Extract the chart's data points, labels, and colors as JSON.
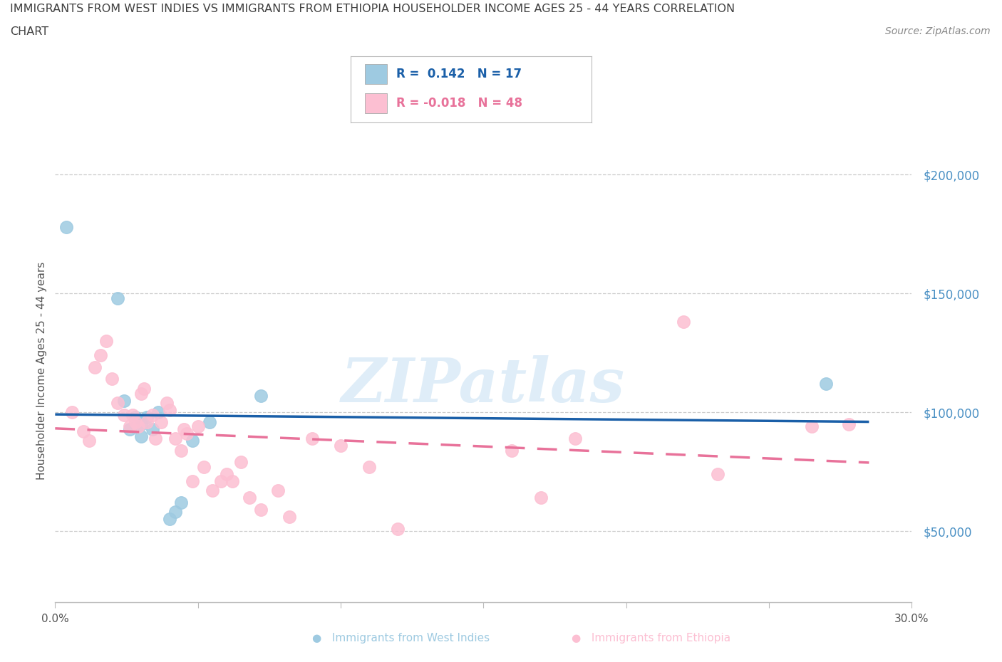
{
  "title_line1": "IMMIGRANTS FROM WEST INDIES VS IMMIGRANTS FROM ETHIOPIA HOUSEHOLDER INCOME AGES 25 - 44 YEARS CORRELATION",
  "title_line2": "CHART",
  "source": "Source: ZipAtlas.com",
  "ylabel": "Householder Income Ages 25 - 44 years",
  "xlim": [
    0.0,
    0.3
  ],
  "ylim": [
    20000,
    215000
  ],
  "yticks": [
    50000,
    100000,
    150000,
    200000
  ],
  "ytick_labels": [
    "$50,000",
    "$100,000",
    "$150,000",
    "$200,000"
  ],
  "xticks": [
    0.0,
    0.05,
    0.1,
    0.15,
    0.2,
    0.25,
    0.3
  ],
  "xtick_labels": [
    "0.0%",
    "",
    "",
    "",
    "",
    "",
    "30.0%"
  ],
  "west_indies_color": "#9ecae1",
  "ethiopia_color": "#fcbfd2",
  "west_indies_line_color": "#1a5fa8",
  "ethiopia_line_color": "#e8729a",
  "R_west_indies": 0.142,
  "N_west_indies": 17,
  "R_ethiopia": -0.018,
  "N_ethiopia": 48,
  "west_indies_x": [
    0.004,
    0.022,
    0.024,
    0.026,
    0.028,
    0.03,
    0.03,
    0.032,
    0.034,
    0.036,
    0.04,
    0.042,
    0.044,
    0.048,
    0.054,
    0.072,
    0.27
  ],
  "west_indies_y": [
    178000,
    148000,
    105000,
    93000,
    98000,
    95000,
    90000,
    98000,
    93000,
    100000,
    55000,
    58000,
    62000,
    88000,
    96000,
    107000,
    112000
  ],
  "ethiopia_x": [
    0.006,
    0.01,
    0.012,
    0.014,
    0.016,
    0.018,
    0.02,
    0.022,
    0.024,
    0.026,
    0.027,
    0.028,
    0.029,
    0.03,
    0.031,
    0.032,
    0.034,
    0.035,
    0.037,
    0.039,
    0.04,
    0.042,
    0.044,
    0.045,
    0.046,
    0.048,
    0.05,
    0.052,
    0.055,
    0.058,
    0.06,
    0.062,
    0.065,
    0.068,
    0.072,
    0.078,
    0.082,
    0.09,
    0.1,
    0.11,
    0.12,
    0.16,
    0.17,
    0.182,
    0.22,
    0.232,
    0.265,
    0.278
  ],
  "ethiopia_y": [
    100000,
    92000,
    88000,
    119000,
    124000,
    130000,
    114000,
    104000,
    99000,
    94000,
    99000,
    96000,
    94000,
    108000,
    110000,
    96000,
    99000,
    89000,
    96000,
    104000,
    101000,
    89000,
    84000,
    93000,
    91000,
    71000,
    94000,
    77000,
    67000,
    71000,
    74000,
    71000,
    79000,
    64000,
    59000,
    67000,
    56000,
    89000,
    86000,
    77000,
    51000,
    84000,
    64000,
    89000,
    138000,
    74000,
    94000,
    95000
  ],
  "watermark": "ZIPatlas",
  "background_color": "#ffffff",
  "grid_color": "#c8c8c8",
  "axis_label_color": "#4a90c4",
  "title_color": "#505050"
}
